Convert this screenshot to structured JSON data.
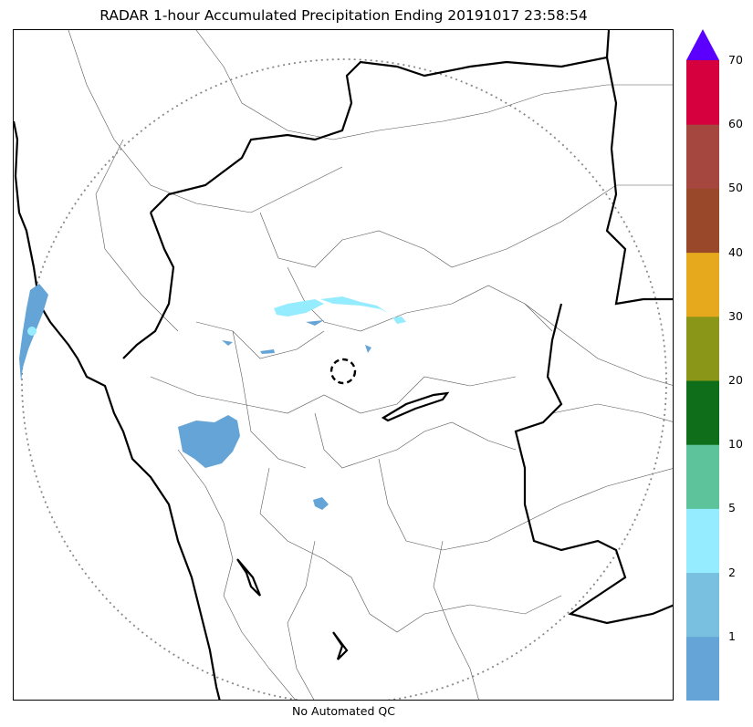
{
  "title": "RADAR 1-hour Accumulated Precipitation Ending 20191017 23:58:54",
  "footer": "No Automated QC",
  "colorbar": {
    "extend_color": "#5b00ff",
    "bins": [
      {
        "color": "#64a4d6"
      },
      {
        "color": "#78bfe0"
      },
      {
        "color": "#95ecff"
      },
      {
        "color": "#5cc39b"
      },
      {
        "color": "#0e6e1a"
      },
      {
        "color": "#8a9617"
      },
      {
        "color": "#e6a81c"
      },
      {
        "color": "#99482a"
      },
      {
        "color": "#a6473f"
      },
      {
        "color": "#d6003f"
      }
    ],
    "tick_labels": [
      "1",
      "2",
      "5",
      "10",
      "20",
      "30",
      "40",
      "50",
      "60",
      "70"
    ]
  },
  "map": {
    "range_ring_style": "dotted",
    "radar_site_marker": "dashed-circle",
    "state_border_color": "#000000",
    "district_border_color": "#555555",
    "precip_main_color": "#64a4d6",
    "precip_light_color": "#95ecff"
  }
}
